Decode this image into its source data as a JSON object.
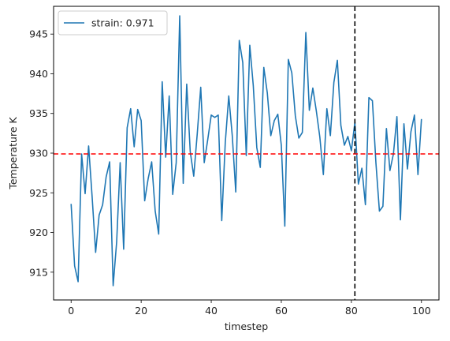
{
  "chart_data": {
    "type": "line",
    "xlabel": "timestep",
    "ylabel": "Temperature K",
    "xlim": [
      -5,
      105
    ],
    "ylim": [
      911.5,
      948.5
    ],
    "xticks": [
      0,
      20,
      40,
      60,
      80,
      100
    ],
    "yticks": [
      915,
      920,
      925,
      930,
      935,
      940,
      945
    ],
    "grid": false,
    "legend_position": "top-left",
    "series": [
      {
        "name": "strain: 0.971",
        "color": "#1f77b4",
        "x": [
          0,
          1,
          2,
          3,
          4,
          5,
          6,
          7,
          8,
          9,
          10,
          11,
          12,
          13,
          14,
          15,
          16,
          17,
          18,
          19,
          20,
          21,
          22,
          23,
          24,
          25,
          26,
          27,
          28,
          29,
          30,
          31,
          32,
          33,
          34,
          35,
          36,
          37,
          38,
          39,
          40,
          41,
          42,
          43,
          44,
          45,
          46,
          47,
          48,
          49,
          50,
          51,
          52,
          53,
          54,
          55,
          56,
          57,
          58,
          59,
          60,
          61,
          62,
          63,
          64,
          65,
          66,
          67,
          68,
          69,
          70,
          71,
          72,
          73,
          74,
          75,
          76,
          77,
          78,
          79,
          80,
          81,
          82,
          83,
          84,
          85,
          86,
          87,
          88,
          89,
          90,
          91,
          92,
          93,
          94,
          95,
          96,
          97,
          98,
          99,
          100
        ],
        "y": [
          923.6,
          915.8,
          913.8,
          929.9,
          924.9,
          930.9,
          924.5,
          917.5,
          922.2,
          923.5,
          927.0,
          928.9,
          913.3,
          918.8,
          928.8,
          917.9,
          933.2,
          935.6,
          930.8,
          935.5,
          934.1,
          924.0,
          926.8,
          928.9,
          922.7,
          919.8,
          939.0,
          929.5,
          937.2,
          924.8,
          928.8,
          947.3,
          926.2,
          938.7,
          930.2,
          927.1,
          932.4,
          938.3,
          928.8,
          931.7,
          934.8,
          934.5,
          934.8,
          921.5,
          931.3,
          937.2,
          932.2,
          925.1,
          944.2,
          941.4,
          929.7,
          943.6,
          938.5,
          930.7,
          928.2,
          940.8,
          937.6,
          932.2,
          934.1,
          934.9,
          931.0,
          920.8,
          941.8,
          940.1,
          934.7,
          931.9,
          932.6,
          945.2,
          935.4,
          938.2,
          935.3,
          932.0,
          927.3,
          935.6,
          932.2,
          938.9,
          941.7,
          933.5,
          931.0,
          932.1,
          930.3,
          933.9,
          926.1,
          928.1,
          923.5,
          937.0,
          936.6,
          928.8,
          922.7,
          923.3,
          933.1,
          927.8,
          929.9,
          934.6,
          921.6,
          933.7,
          928.0,
          932.7,
          934.8,
          927.3,
          934.3
        ]
      }
    ],
    "annotations": [
      {
        "type": "hline",
        "y": 929.9,
        "color": "#ff0000",
        "style": "dashed"
      },
      {
        "type": "vline",
        "x": 81,
        "color": "#000000",
        "style": "dashed"
      }
    ]
  }
}
